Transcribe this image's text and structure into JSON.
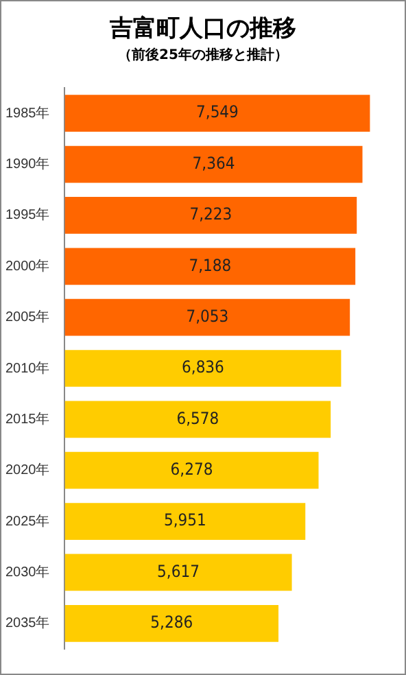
{
  "chart_data": {
    "type": "bar",
    "orientation": "horizontal",
    "title": "吉富町人口の推移",
    "subtitle": "（前後25年の推移と推計）",
    "categories": [
      "1985年",
      "1990年",
      "1995年",
      "2000年",
      "2005年",
      "2010年",
      "2015年",
      "2020年",
      "2025年",
      "2030年",
      "2035年"
    ],
    "values": [
      7549,
      7364,
      7223,
      7188,
      7053,
      6836,
      6578,
      6278,
      5951,
      5617,
      5286
    ],
    "colors": [
      "#ff6600",
      "#ff6600",
      "#ff6600",
      "#ff6600",
      "#ff6600",
      "#ffcc00",
      "#ffcc00",
      "#ffcc00",
      "#ffcc00",
      "#ffcc00",
      "#ffcc00"
    ],
    "value_labels": [
      "7,549",
      "7,364",
      "7,223",
      "7,188",
      "7,053",
      "6,836",
      "6,578",
      "6,278",
      "5,951",
      "5,617",
      "5,286"
    ],
    "tick_labels": "y",
    "grid": false,
    "legend": false
  }
}
